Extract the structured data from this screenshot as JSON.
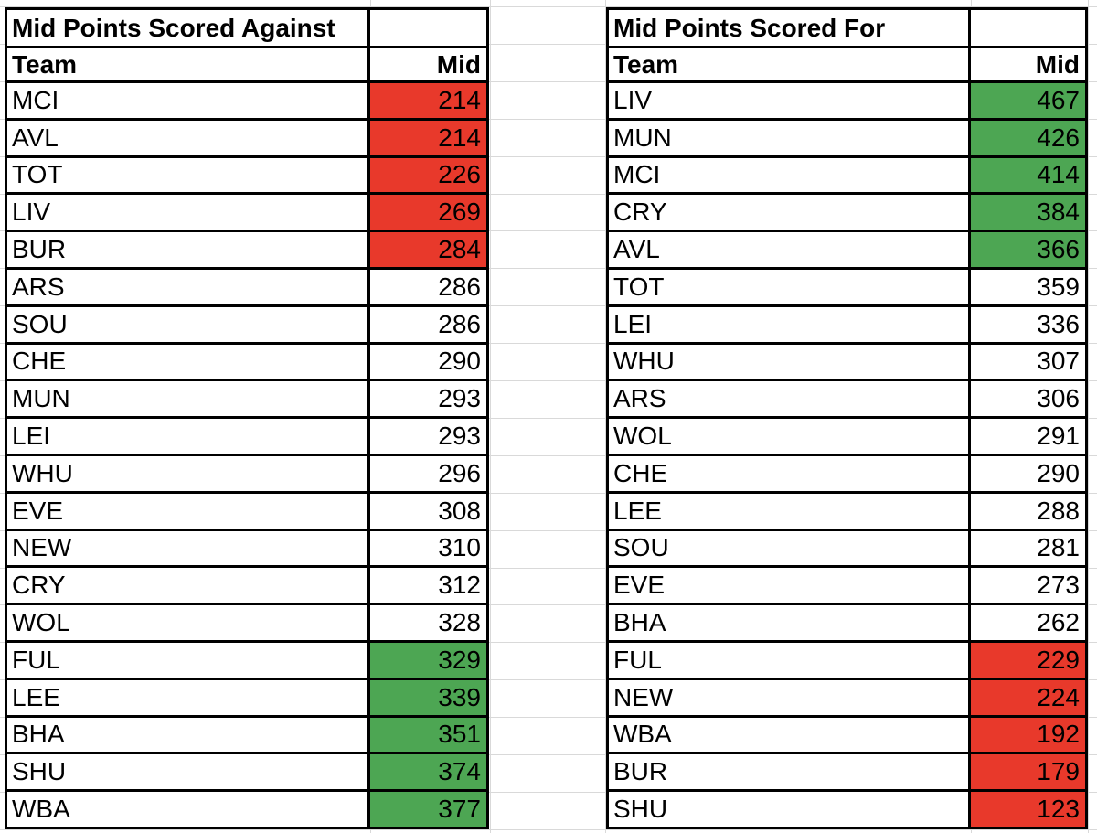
{
  "sheet": {
    "background": "#ffffff",
    "gridline_color": "#d9d9d9",
    "table_border_color": "#000000"
  },
  "colors": {
    "highlight_red": "#e8392b",
    "highlight_green": "#4da653"
  },
  "tables": [
    {
      "title": "Mid Points Scored Against",
      "columns": {
        "team": "Team",
        "value": "Mid"
      },
      "rows": [
        {
          "team": "MCI",
          "mid": 214,
          "highlight": "red"
        },
        {
          "team": "AVL",
          "mid": 214,
          "highlight": "red"
        },
        {
          "team": "TOT",
          "mid": 226,
          "highlight": "red"
        },
        {
          "team": "LIV",
          "mid": 269,
          "highlight": "red"
        },
        {
          "team": "BUR",
          "mid": 284,
          "highlight": "red"
        },
        {
          "team": "ARS",
          "mid": 286,
          "highlight": "none"
        },
        {
          "team": "SOU",
          "mid": 286,
          "highlight": "none"
        },
        {
          "team": "CHE",
          "mid": 290,
          "highlight": "none"
        },
        {
          "team": "MUN",
          "mid": 293,
          "highlight": "none"
        },
        {
          "team": "LEI",
          "mid": 293,
          "highlight": "none"
        },
        {
          "team": "WHU",
          "mid": 296,
          "highlight": "none"
        },
        {
          "team": "EVE",
          "mid": 308,
          "highlight": "none"
        },
        {
          "team": "NEW",
          "mid": 310,
          "highlight": "none"
        },
        {
          "team": "CRY",
          "mid": 312,
          "highlight": "none"
        },
        {
          "team": "WOL",
          "mid": 328,
          "highlight": "none"
        },
        {
          "team": "FUL",
          "mid": 329,
          "highlight": "green"
        },
        {
          "team": "LEE",
          "mid": 339,
          "highlight": "green"
        },
        {
          "team": "BHA",
          "mid": 351,
          "highlight": "green"
        },
        {
          "team": "SHU",
          "mid": 374,
          "highlight": "green"
        },
        {
          "team": "WBA",
          "mid": 377,
          "highlight": "green"
        }
      ]
    },
    {
      "title": "Mid Points Scored For",
      "columns": {
        "team": "Team",
        "value": "Mid"
      },
      "rows": [
        {
          "team": "LIV",
          "mid": 467,
          "highlight": "green"
        },
        {
          "team": "MUN",
          "mid": 426,
          "highlight": "green"
        },
        {
          "team": "MCI",
          "mid": 414,
          "highlight": "green"
        },
        {
          "team": "CRY",
          "mid": 384,
          "highlight": "green"
        },
        {
          "team": "AVL",
          "mid": 366,
          "highlight": "green"
        },
        {
          "team": "TOT",
          "mid": 359,
          "highlight": "none"
        },
        {
          "team": "LEI",
          "mid": 336,
          "highlight": "none"
        },
        {
          "team": "WHU",
          "mid": 307,
          "highlight": "none"
        },
        {
          "team": "ARS",
          "mid": 306,
          "highlight": "none"
        },
        {
          "team": "WOL",
          "mid": 291,
          "highlight": "none"
        },
        {
          "team": "CHE",
          "mid": 290,
          "highlight": "none"
        },
        {
          "team": "LEE",
          "mid": 288,
          "highlight": "none"
        },
        {
          "team": "SOU",
          "mid": 281,
          "highlight": "none"
        },
        {
          "team": "EVE",
          "mid": 273,
          "highlight": "none"
        },
        {
          "team": "BHA",
          "mid": 262,
          "highlight": "none"
        },
        {
          "team": "FUL",
          "mid": 229,
          "highlight": "red"
        },
        {
          "team": "NEW",
          "mid": 224,
          "highlight": "red"
        },
        {
          "team": "WBA",
          "mid": 192,
          "highlight": "red"
        },
        {
          "team": "BUR",
          "mid": 179,
          "highlight": "red"
        },
        {
          "team": "SHU",
          "mid": 123,
          "highlight": "red"
        }
      ]
    }
  ]
}
